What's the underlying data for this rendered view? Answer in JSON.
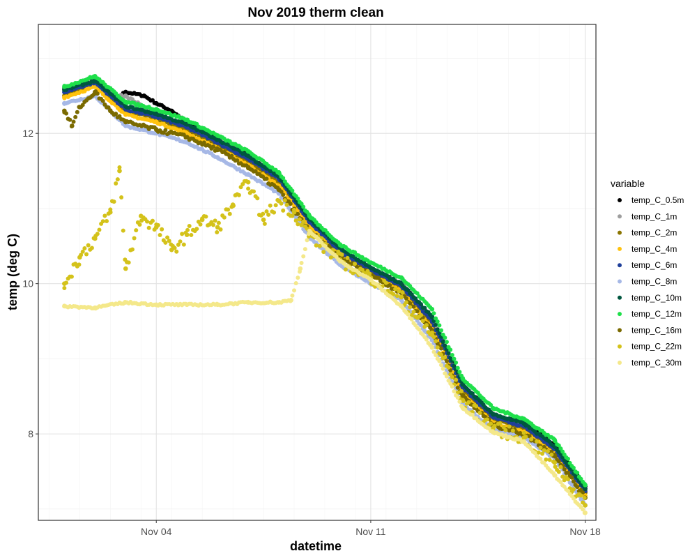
{
  "chart_data": {
    "type": "scatter",
    "title": "Nov 2019 therm clean",
    "xlabel": "datetime",
    "ylabel": "temp (deg C)",
    "x_unit": "days since Nov 01 00:00",
    "xlim": [
      -0.85,
      17.35
    ],
    "ylim": [
      6.85,
      13.45
    ],
    "x_ticks": [
      {
        "value": 3,
        "label": "Nov 04"
      },
      {
        "value": 10,
        "label": "Nov 11"
      },
      {
        "value": 17,
        "label": "Nov 18"
      }
    ],
    "y_ticks": [
      {
        "value": 8,
        "label": "8"
      },
      {
        "value": 10,
        "label": "10"
      },
      {
        "value": 12,
        "label": "12"
      }
    ],
    "grid": true,
    "legend_title": "variable",
    "legend_position": "right",
    "series": [
      {
        "name": "temp_C_0.5m",
        "color": "#000000",
        "x": [
          0,
          1,
          1.6,
          2,
          2.6,
          3,
          3.5,
          4,
          5,
          6,
          7,
          8,
          9,
          10,
          11,
          12,
          13,
          14,
          15,
          16,
          17
        ],
        "values": [
          12.6,
          12.7,
          12.45,
          12.55,
          12.5,
          12.4,
          12.3,
          12.15,
          11.92,
          11.7,
          11.42,
          10.85,
          10.45,
          10.2,
          10.0,
          9.55,
          8.65,
          8.25,
          8.15,
          7.85,
          7.3
        ]
      },
      {
        "name": "temp_C_1m",
        "color": "#9e9e9e",
        "x": [
          0,
          1,
          1.6,
          2,
          3,
          4,
          5,
          6,
          7,
          8,
          9,
          10,
          11,
          12,
          13,
          14,
          15,
          16,
          17
        ],
        "values": [
          12.6,
          12.7,
          12.5,
          12.5,
          12.25,
          12.1,
          11.9,
          11.68,
          11.4,
          10.84,
          10.45,
          10.2,
          10.0,
          9.52,
          8.62,
          8.24,
          8.12,
          7.82,
          7.28
        ]
      },
      {
        "name": "temp_C_2m",
        "color": "#8b7500",
        "x": [
          0,
          1,
          2,
          3,
          4,
          5,
          6,
          7,
          8,
          9,
          10,
          11,
          12,
          13,
          14,
          15,
          16,
          17
        ],
        "values": [
          12.5,
          12.65,
          12.3,
          12.2,
          12.05,
          11.85,
          11.62,
          11.35,
          10.8,
          10.42,
          10.15,
          9.95,
          9.45,
          8.58,
          8.2,
          8.08,
          7.78,
          7.22
        ]
      },
      {
        "name": "temp_C_4m",
        "color": "#ffc20e",
        "x": [
          0,
          1,
          2,
          3,
          4,
          5,
          6,
          7,
          8,
          9,
          10,
          11,
          12,
          13,
          14,
          15,
          16,
          17
        ],
        "values": [
          12.48,
          12.62,
          12.25,
          12.15,
          12.0,
          11.8,
          11.58,
          11.3,
          10.76,
          10.38,
          10.12,
          9.9,
          9.4,
          8.52,
          8.15,
          8.02,
          7.74,
          7.18
        ]
      },
      {
        "name": "temp_C_6m",
        "color": "#1f3f9a",
        "x": [
          0,
          1,
          2,
          3,
          4,
          5,
          6,
          7,
          8,
          9,
          10,
          11,
          12,
          13,
          14,
          15,
          16,
          17
        ],
        "values": [
          12.55,
          12.68,
          12.32,
          12.22,
          12.08,
          11.88,
          11.66,
          11.4,
          10.82,
          10.43,
          10.18,
          9.97,
          9.5,
          8.62,
          8.22,
          8.1,
          7.8,
          7.24
        ]
      },
      {
        "name": "temp_C_8m",
        "color": "#a6b8e6",
        "x": [
          0,
          1,
          2,
          3,
          4,
          5,
          6,
          7,
          8,
          9,
          10,
          11,
          12,
          13,
          14,
          15,
          16,
          17
        ],
        "values": [
          12.4,
          12.5,
          12.1,
          12.0,
          11.88,
          11.68,
          11.45,
          11.2,
          10.62,
          10.25,
          10.0,
          9.78,
          9.25,
          8.4,
          8.05,
          7.95,
          7.68,
          7.05
        ]
      },
      {
        "name": "temp_C_10m",
        "color": "#00563f",
        "x": [
          0,
          1,
          2,
          3,
          4,
          5,
          6,
          7,
          8,
          9,
          10,
          11,
          12,
          13,
          14,
          15,
          16,
          17
        ],
        "values": [
          12.58,
          12.7,
          12.36,
          12.26,
          12.12,
          11.92,
          11.7,
          11.43,
          10.86,
          10.47,
          10.21,
          10.0,
          9.56,
          8.66,
          8.26,
          8.14,
          7.84,
          7.27
        ]
      },
      {
        "name": "temp_C_12m",
        "color": "#1ee04a",
        "x": [
          0,
          1,
          2,
          3,
          4,
          5,
          6,
          7,
          8,
          9,
          10,
          11,
          12,
          13,
          14,
          15,
          16,
          17
        ],
        "values": [
          12.62,
          12.76,
          12.42,
          12.32,
          12.18,
          11.97,
          11.76,
          11.48,
          10.9,
          10.52,
          10.28,
          10.08,
          9.66,
          8.74,
          8.34,
          8.2,
          7.92,
          7.32
        ]
      },
      {
        "name": "temp_C_16m",
        "color": "#7a6a00",
        "x": [
          0,
          0.25,
          0.5,
          1,
          1.5,
          2,
          3,
          4,
          5,
          6,
          7,
          8,
          9,
          10,
          11,
          12,
          13,
          14,
          15,
          16,
          17
        ],
        "values": [
          12.3,
          12.1,
          12.35,
          12.55,
          12.3,
          12.15,
          12.05,
          11.95,
          11.78,
          11.55,
          11.25,
          10.7,
          10.35,
          10.12,
          9.88,
          9.38,
          8.5,
          8.12,
          8.0,
          7.72,
          7.15
        ]
      },
      {
        "name": "temp_C_22m",
        "color": "#d4c21a",
        "x": [
          0,
          0.5,
          1,
          1.5,
          1.8,
          2,
          2.5,
          3,
          3.5,
          4,
          4.5,
          5,
          5.5,
          6,
          6.5,
          7,
          7.5,
          8,
          9,
          10,
          11,
          12,
          13,
          14,
          15,
          16,
          17
        ],
        "values": [
          10.0,
          10.35,
          10.6,
          10.95,
          11.5,
          10.2,
          10.9,
          10.75,
          10.45,
          10.65,
          10.85,
          10.75,
          11.05,
          11.35,
          10.85,
          11.1,
          10.95,
          10.65,
          10.32,
          10.08,
          9.82,
          9.32,
          8.45,
          8.08,
          7.95,
          7.62,
          7.05
        ]
      },
      {
        "name": "temp_C_30m",
        "color": "#f4e88a",
        "x": [
          0,
          1,
          2,
          3,
          4,
          5,
          6,
          7,
          7.4,
          7.7,
          8,
          9,
          10,
          11,
          12,
          13,
          14,
          15,
          16,
          17
        ],
        "values": [
          9.7,
          9.68,
          9.75,
          9.72,
          9.72,
          9.72,
          9.75,
          9.75,
          9.78,
          10.2,
          10.7,
          10.3,
          10.05,
          9.7,
          9.15,
          8.35,
          8.02,
          7.9,
          7.45,
          6.95
        ]
      }
    ]
  }
}
